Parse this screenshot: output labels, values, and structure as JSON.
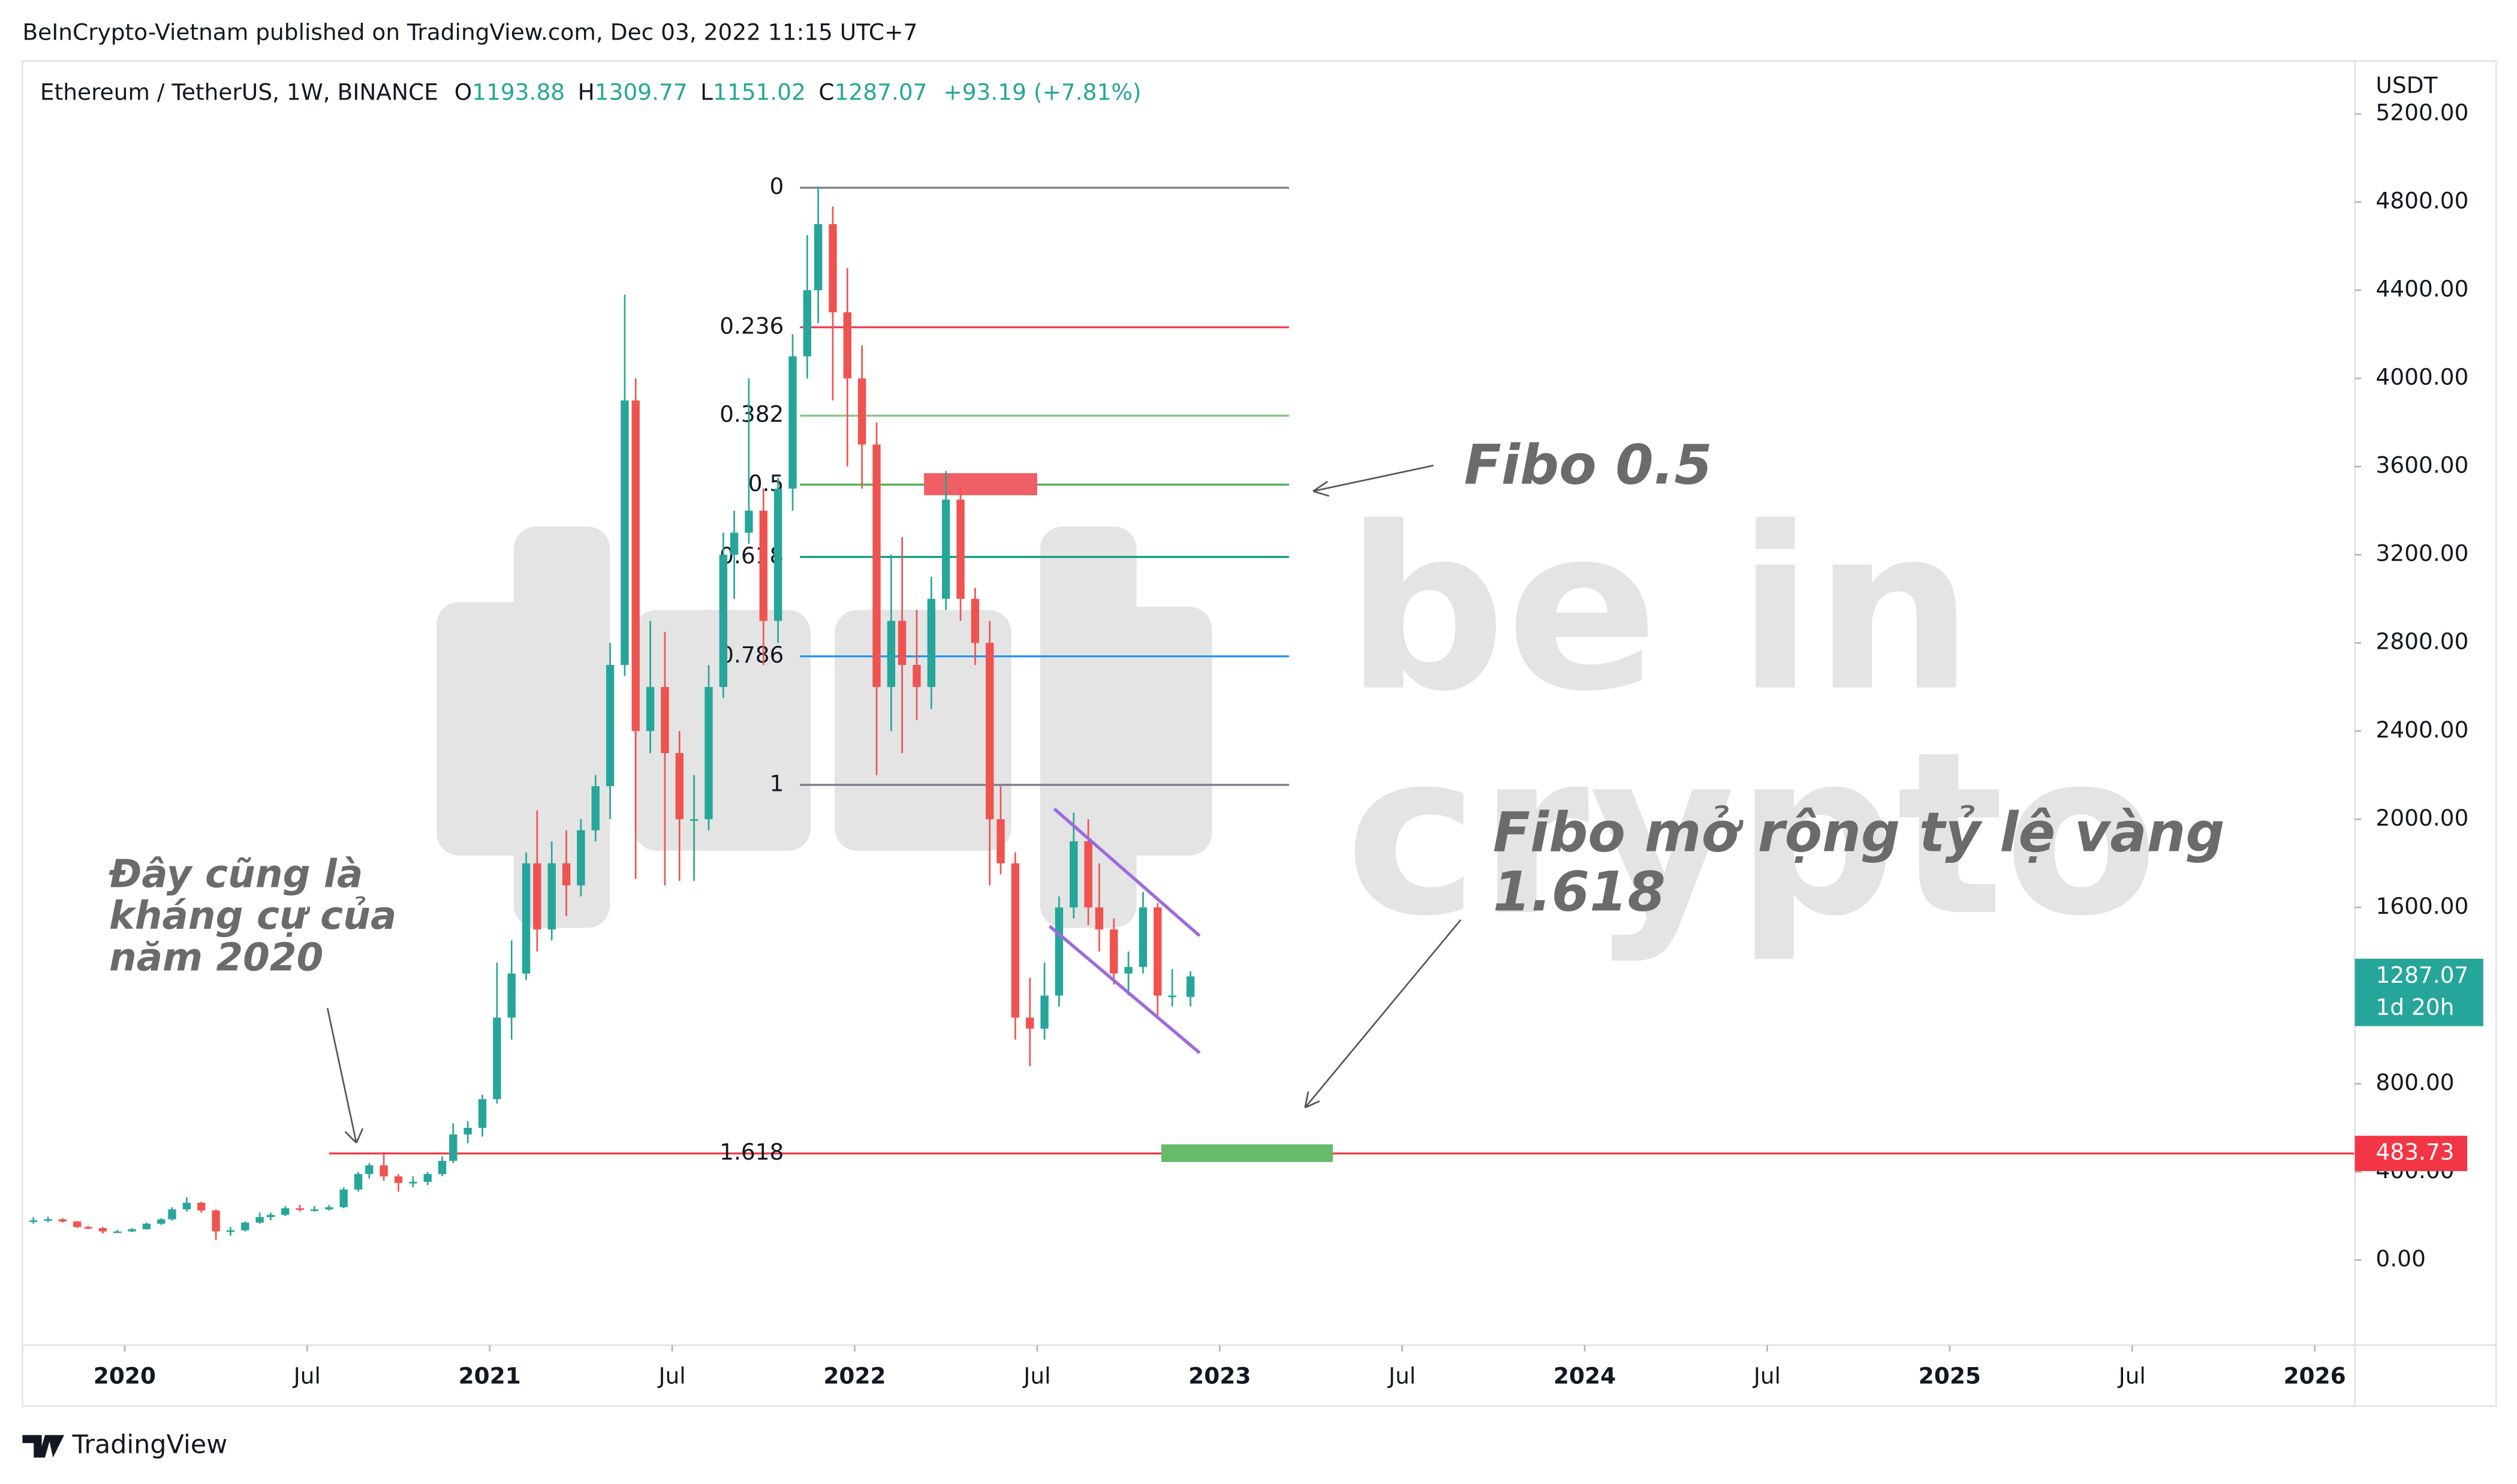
{
  "header": "BeInCrypto-Vietnam published on TradingView.com, Dec 03, 2022 11:15 UTC+7",
  "footer": "TradingView",
  "chart_data": {
    "type": "candlestick",
    "symbol": "Ethereum / TetherUS, 1W, BINANCE",
    "legend_labels": [
      "O",
      "H",
      "L",
      "C"
    ],
    "change": "+93.19 (+7.81%)",
    "unit": "USDT",
    "countdown": "1d 20h",
    "up_color": "#26a69a",
    "down_color": "#ef5350",
    "xlim": [
      2019.72,
      2026.11
    ],
    "ylim": [
      -386,
      5440
    ],
    "xticks": [
      {
        "value": 2020,
        "label": "2020"
      },
      {
        "value": 2020.5,
        "label": "Jul"
      },
      {
        "value": 2021,
        "label": "2021"
      },
      {
        "value": 2021.5,
        "label": "Jul"
      },
      {
        "value": 2022,
        "label": "2022"
      },
      {
        "value": 2022.5,
        "label": "Jul"
      },
      {
        "value": 2023,
        "label": "2023"
      },
      {
        "value": 2023.5,
        "label": "Jul"
      },
      {
        "value": 2024,
        "label": "2024"
      },
      {
        "value": 2024.5,
        "label": "Jul"
      },
      {
        "value": 2025,
        "label": "2025"
      },
      {
        "value": 2025.5,
        "label": "Jul"
      },
      {
        "value": 2026,
        "label": "2026"
      }
    ],
    "yticks": [
      {
        "value": 0,
        "label": "0.00"
      },
      {
        "value": 400,
        "label": "400.00"
      },
      {
        "value": 800,
        "label": "800.00"
      },
      {
        "value": 1200,
        "label": "1200.00"
      },
      {
        "value": 1600,
        "label": "1600.00"
      },
      {
        "value": 2000,
        "label": "2000.00"
      },
      {
        "value": 2400,
        "label": "2400.00"
      },
      {
        "value": 2800,
        "label": "2800.00"
      },
      {
        "value": 3200,
        "label": "3200.00"
      },
      {
        "value": 3600,
        "label": "3600.00"
      },
      {
        "value": 4000,
        "label": "4000.00"
      },
      {
        "value": 4400,
        "label": "4400.00"
      },
      {
        "value": 4800,
        "label": "4800.00"
      },
      {
        "value": 5200,
        "label": "5200.00"
      }
    ],
    "x": [
      2019.75,
      2019.79,
      2019.83,
      2019.87,
      2019.9,
      2019.94,
      2019.98,
      2020.02,
      2020.06,
      2020.1,
      2020.13,
      2020.17,
      2020.21,
      2020.25,
      2020.29,
      2020.33,
      2020.37,
      2020.4,
      2020.44,
      2020.48,
      2020.52,
      2020.56,
      2020.6,
      2020.64,
      2020.67,
      2020.71,
      2020.75,
      2020.79,
      2020.83,
      2020.87,
      2020.9,
      2020.94,
      2020.98,
      2021.02,
      2021.06,
      2021.1,
      2021.13,
      2021.17,
      2021.21,
      2021.25,
      2021.29,
      2021.33,
      2021.37,
      2021.4,
      2021.44,
      2021.48,
      2021.52,
      2021.56,
      2021.6,
      2021.64,
      2021.67,
      2021.71,
      2021.75,
      2021.79,
      2021.83,
      2021.87,
      2021.9,
      2021.94,
      2021.98,
      2022.02,
      2022.06,
      2022.1,
      2022.13,
      2022.17,
      2022.21,
      2022.25,
      2022.29,
      2022.33,
      2022.37,
      2022.4,
      2022.44,
      2022.48,
      2022.52,
      2022.56,
      2022.6,
      2022.64,
      2022.67,
      2022.71,
      2022.75,
      2022.79,
      2022.83,
      2022.87,
      2022.92
    ],
    "ohlc": [
      [
        175,
        195,
        165,
        180
      ],
      [
        180,
        197,
        172,
        185
      ],
      [
        185,
        190,
        170,
        175
      ],
      [
        175,
        178,
        145,
        150
      ],
      [
        150,
        155,
        140,
        145
      ],
      [
        145,
        150,
        120,
        130
      ],
      [
        130,
        137,
        125,
        130
      ],
      [
        130,
        145,
        127,
        140
      ],
      [
        140,
        170,
        138,
        165
      ],
      [
        165,
        190,
        160,
        185
      ],
      [
        185,
        240,
        180,
        230
      ],
      [
        230,
        285,
        220,
        260
      ],
      [
        260,
        265,
        215,
        225
      ],
      [
        225,
        230,
        90,
        130
      ],
      [
        130,
        150,
        110,
        135
      ],
      [
        135,
        175,
        130,
        170
      ],
      [
        170,
        215,
        165,
        195
      ],
      [
        195,
        215,
        180,
        205
      ],
      [
        205,
        245,
        200,
        235
      ],
      [
        235,
        250,
        220,
        230
      ],
      [
        230,
        245,
        220,
        230
      ],
      [
        230,
        250,
        225,
        240
      ],
      [
        240,
        330,
        235,
        320
      ],
      [
        320,
        400,
        310,
        390
      ],
      [
        390,
        440,
        370,
        430
      ],
      [
        430,
        490,
        360,
        380
      ],
      [
        380,
        390,
        310,
        350
      ],
      [
        350,
        380,
        330,
        355
      ],
      [
        355,
        400,
        340,
        390
      ],
      [
        390,
        470,
        380,
        450
      ],
      [
        450,
        620,
        440,
        570
      ],
      [
        570,
        630,
        530,
        600
      ],
      [
        600,
        750,
        560,
        730
      ],
      [
        730,
        1350,
        710,
        1100
      ],
      [
        1100,
        1450,
        1000,
        1300
      ],
      [
        1300,
        1850,
        1270,
        1800
      ],
      [
        1800,
        2040,
        1400,
        1500
      ],
      [
        1500,
        1900,
        1450,
        1800
      ],
      [
        1800,
        1950,
        1560,
        1700
      ],
      [
        1700,
        2000,
        1650,
        1950
      ],
      [
        1950,
        2200,
        1900,
        2150
      ],
      [
        2150,
        2800,
        2000,
        2700
      ],
      [
        2700,
        4380,
        2650,
        3900
      ],
      [
        3900,
        4000,
        1730,
        2400
      ],
      [
        2400,
        2900,
        2300,
        2600
      ],
      [
        2600,
        2850,
        1700,
        2300
      ],
      [
        2300,
        2400,
        1720,
        2000
      ],
      [
        2000,
        2200,
        1720,
        2000
      ],
      [
        2000,
        2700,
        1950,
        2600
      ],
      [
        2600,
        3300,
        2550,
        3200
      ],
      [
        3200,
        3400,
        3000,
        3300
      ],
      [
        3300,
        4000,
        3250,
        3400
      ],
      [
        3400,
        3500,
        2700,
        2900
      ],
      [
        2900,
        3550,
        2800,
        3500
      ],
      [
        3500,
        4200,
        3400,
        4100
      ],
      [
        4100,
        4650,
        4000,
        4400
      ],
      [
        4400,
        4870,
        4250,
        4700
      ],
      [
        4700,
        4780,
        3900,
        4300
      ],
      [
        4300,
        4500,
        3600,
        4000
      ],
      [
        4000,
        4150,
        3500,
        3700
      ],
      [
        3700,
        3800,
        2200,
        2600
      ],
      [
        2600,
        3200,
        2400,
        2900
      ],
      [
        2900,
        3280,
        2300,
        2700
      ],
      [
        2700,
        2950,
        2450,
        2600
      ],
      [
        2600,
        3100,
        2500,
        3000
      ],
      [
        3000,
        3580,
        2950,
        3450
      ],
      [
        3450,
        3500,
        2900,
        3000
      ],
      [
        3000,
        3050,
        2700,
        2800
      ],
      [
        2800,
        2900,
        1700,
        2000
      ],
      [
        2000,
        2150,
        1750,
        1800
      ],
      [
        1800,
        1850,
        1000,
        1100
      ],
      [
        1100,
        1280,
        880,
        1050
      ],
      [
        1050,
        1350,
        1000,
        1200
      ],
      [
        1200,
        1650,
        1150,
        1600
      ],
      [
        1600,
        2030,
        1550,
        1900
      ],
      [
        1900,
        2000,
        1520,
        1600
      ],
      [
        1600,
        1800,
        1400,
        1500
      ],
      [
        1500,
        1550,
        1250,
        1300
      ],
      [
        1300,
        1400,
        1200,
        1330
      ],
      [
        1330,
        1670,
        1300,
        1600
      ],
      [
        1600,
        1620,
        1100,
        1200
      ],
      [
        1200,
        1320,
        1150,
        1200
      ],
      [
        1193.88,
        1309.77,
        1151.02,
        1287.07
      ]
    ],
    "fib_levels": [
      {
        "label": "0",
        "value": 4865,
        "color": "#787b86",
        "x": [
          2021.85,
          2023.19
        ]
      },
      {
        "label": "0.236",
        "value": 4232,
        "color": "#f23645",
        "x": [
          2021.85,
          2023.19
        ]
      },
      {
        "label": "0.382",
        "value": 3831,
        "color": "#81c784",
        "x": [
          2021.85,
          2023.19
        ]
      },
      {
        "label": "0.5",
        "value": 3518,
        "color": "#4caf50",
        "x": [
          2021.85,
          2023.19
        ]
      },
      {
        "label": "0.618",
        "value": 3190,
        "color": "#089981",
        "x": [
          2021.85,
          2023.19
        ]
      },
      {
        "label": "0.786",
        "value": 2739,
        "color": "#2196f3",
        "x": [
          2021.85,
          2023.19
        ]
      },
      {
        "label": "1",
        "value": 2156,
        "color": "#787b86",
        "x": [
          2021.85,
          2023.19
        ]
      },
      {
        "label": "1.618",
        "value": 483.73,
        "color": "#f23645",
        "label_color": "#9c27b0",
        "x": [
          2020.56,
          2026.11
        ]
      }
    ],
    "zones": [
      {
        "x": [
          2022.19,
          2022.5
        ],
        "y": [
          3470,
          3570
        ],
        "color": "#f05e66"
      },
      {
        "x": [
          2022.84,
          2023.31
        ],
        "y": [
          445,
          525
        ],
        "color": "#66bb6a"
      }
    ],
    "channel": [
      {
        "x": [
          2022.547,
          2022.945
        ],
        "y": [
          2047,
          1471
        ],
        "color": "#9c6ade"
      },
      {
        "x": [
          2022.534,
          2022.945
        ],
        "y": [
          1515,
          940
        ],
        "color": "#9c6ade"
      }
    ],
    "annotations": {
      "fibo_05": "Fibo 0.5",
      "extension": [
        "Fibo mở rộng tỷ lệ vàng",
        "1.618"
      ],
      "resistance": [
        "Đây cũng là",
        "kháng cự của",
        "năm 2020"
      ]
    },
    "watermark": [
      "be in",
      "crypto"
    ]
  }
}
